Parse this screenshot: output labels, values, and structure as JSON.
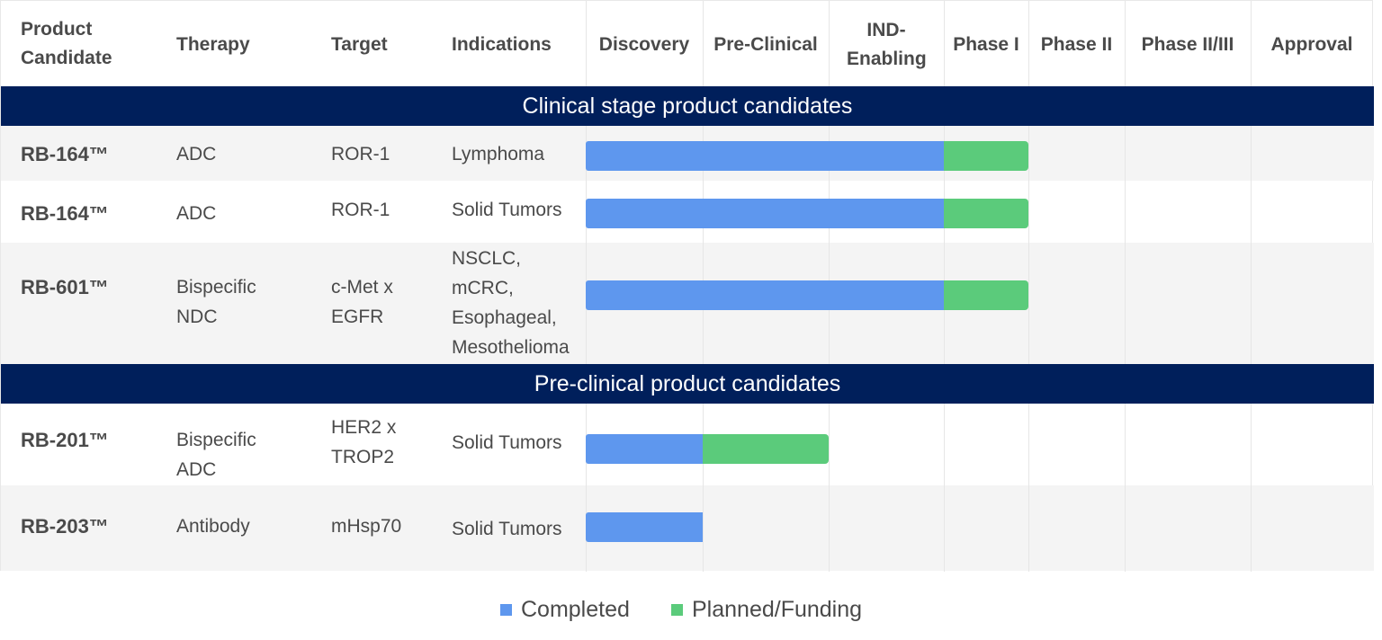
{
  "headers": {
    "product": "Product Candidate",
    "therapy": "Therapy",
    "target": "Target",
    "indications": "Indications"
  },
  "stages": [
    "Discovery",
    "Pre-Clinical",
    "IND-Enabling",
    "Phase I",
    "Phase II",
    "Phase II/III",
    "Approval"
  ],
  "sections": [
    {
      "title": "Clinical stage product candidates",
      "rows": [
        {
          "name": "RB-164™",
          "therapy": "ADC",
          "target": "ROR-1",
          "indications": "Lymphoma",
          "completed_through": "IND-Enabling",
          "planned_through": "Phase I"
        },
        {
          "name": "RB-164™",
          "therapy": "ADC",
          "target": "ROR-1",
          "indications": "Solid Tumors",
          "completed_through": "IND-Enabling",
          "planned_through": "Phase I"
        },
        {
          "name": "RB-601™",
          "therapy": "Bispecific NDC",
          "target": "c-Met x EGFR",
          "indications": "NSCLC, mCRC, Esophageal, Mesothelioma",
          "completed_through": "IND-Enabling",
          "planned_through": "Phase I"
        }
      ]
    },
    {
      "title": "Pre-clinical product candidates",
      "rows": [
        {
          "name": "RB-201™",
          "therapy": "Bispecific ADC",
          "target": "HER2 x TROP2",
          "indications": "Solid Tumors",
          "completed_through": "Discovery",
          "planned_through": "Pre-Clinical"
        },
        {
          "name": "RB-203™",
          "therapy": "Antibody",
          "target": "mHsp70",
          "indications": "Solid Tumors",
          "completed_through": "Discovery",
          "planned_through": "Discovery"
        }
      ]
    }
  ],
  "legend": {
    "completed": "Completed",
    "planned": "Planned/Funding"
  },
  "colors": {
    "completed": "#5e97ee",
    "planned": "#5bcb7b",
    "band": "#001f5b"
  }
}
